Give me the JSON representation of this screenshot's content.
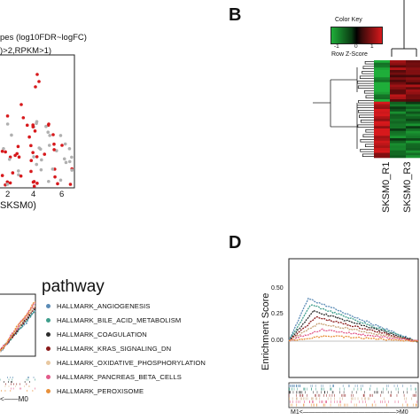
{
  "panels": {
    "A": {
      "title_line1": "pes (log10FDR~logFC)",
      "title_line2": ")>2,RPKM>1)",
      "x_ticks": [
        "2",
        "4",
        "6"
      ],
      "xlabel": "SKSM0)",
      "colors": {
        "sig": "#d7191c",
        "nonsig": "#b0b0b0"
      }
    },
    "B": {
      "letter": "B",
      "color_key_title": "Color Key",
      "color_key_ticks": [
        "-1",
        "0",
        "1"
      ],
      "color_key_label": "Row Z-Score",
      "col_labels": [
        "SKSM0_R1",
        "SKSM0_R3"
      ],
      "colors": {
        "low": "#1fae3a",
        "mid": "#000000",
        "high": "#d7191c"
      }
    },
    "C": {
      "legend_title": "pathway",
      "pathways": [
        {
          "name": "HALLMARK_ANGIOGENESIS",
          "color": "#5b8bb5"
        },
        {
          "name": "HALLMARK_BILE_ACID_METABOLISM",
          "color": "#3f9e8c"
        },
        {
          "name": "HALLMARK_COAGULATION",
          "color": "#2c2c2c"
        },
        {
          "name": "HALLMARK_KRAS_SIGNALING_DN",
          "color": "#8b1a1a"
        },
        {
          "name": "HALLMARK_OXIDATIVE_PHOSPHORYLATION",
          "color": "#e8c8a0"
        },
        {
          "name": "HALLMARK_PANCREAS_BETA_CELLS",
          "color": "#e25b8a"
        },
        {
          "name": "HALLMARK_PEROXISOME",
          "color": "#e8903a"
        }
      ],
      "axis_label": "M0"
    },
    "D": {
      "letter": "D",
      "ylabel": "Enrichment Score",
      "y_ticks": [
        "0.00",
        "0.25",
        "0.50"
      ],
      "axis_label_left": "M1",
      "axis_label_right": "M0"
    }
  }
}
